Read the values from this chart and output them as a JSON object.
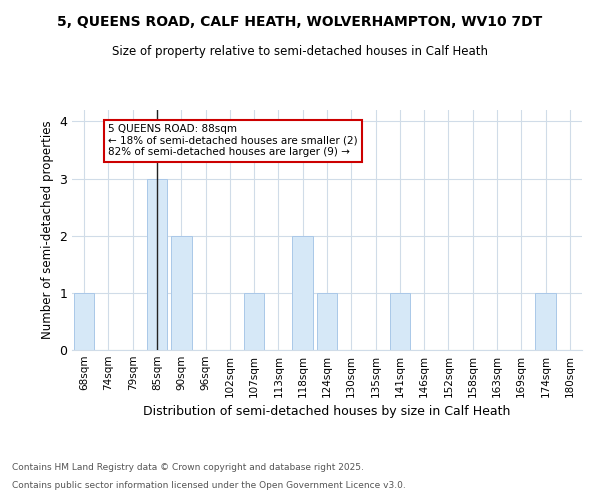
{
  "title_line1": "5, QUEENS ROAD, CALF HEATH, WOLVERHAMPTON, WV10 7DT",
  "title_line2": "Size of property relative to semi-detached houses in Calf Heath",
  "xlabel": "Distribution of semi-detached houses by size in Calf Heath",
  "ylabel": "Number of semi-detached properties",
  "categories": [
    "68sqm",
    "74sqm",
    "79sqm",
    "85sqm",
    "90sqm",
    "96sqm",
    "102sqm",
    "107sqm",
    "113sqm",
    "118sqm",
    "124sqm",
    "130sqm",
    "135sqm",
    "141sqm",
    "146sqm",
    "152sqm",
    "158sqm",
    "163sqm",
    "169sqm",
    "174sqm",
    "180sqm"
  ],
  "values": [
    1,
    0,
    0,
    3,
    2,
    0,
    0,
    1,
    0,
    2,
    1,
    0,
    0,
    1,
    0,
    0,
    0,
    0,
    0,
    1,
    0
  ],
  "bar_color": "#d6e8f7",
  "bar_edge_color": "#aac8e8",
  "highlight_index": 3,
  "highlight_line_color": "#222222",
  "annotation_title": "5 QUEENS ROAD: 88sqm",
  "annotation_line1": "← 18% of semi-detached houses are smaller (2)",
  "annotation_line2": "82% of semi-detached houses are larger (9) →",
  "annotation_box_color": "#ffffff",
  "annotation_box_edge_color": "#cc0000",
  "footnote_line1": "Contains HM Land Registry data © Crown copyright and database right 2025.",
  "footnote_line2": "Contains public sector information licensed under the Open Government Licence v3.0.",
  "ylim": [
    0,
    4.2
  ],
  "yticks": [
    0,
    1,
    2,
    3,
    4
  ],
  "background_color": "#ffffff",
  "grid_color": "#d0dce8"
}
